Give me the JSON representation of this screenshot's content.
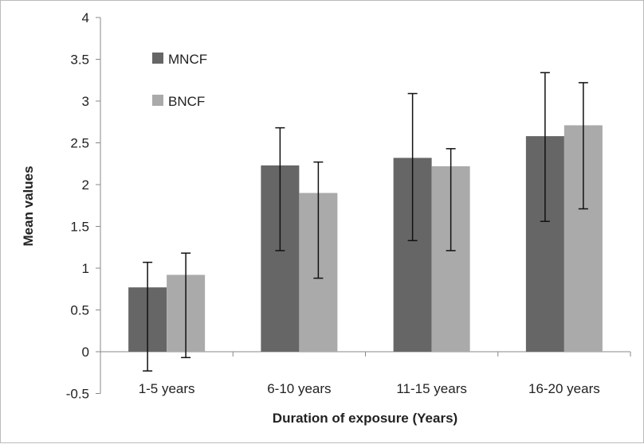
{
  "chart_data": {
    "type": "bar",
    "title": "",
    "xlabel": "Duration of exposure (Years)",
    "ylabel": "Mean values",
    "ylim": [
      -0.5,
      4
    ],
    "yticks": [
      "-0.5",
      "0",
      "0.5",
      "1",
      "1.5",
      "2",
      "2.5",
      "3",
      "3.5",
      "4"
    ],
    "grid": false,
    "legend_position": "top-left",
    "categories": [
      "1-5 years",
      "6-10 years",
      "11-15 years",
      "16-20 years"
    ],
    "series": [
      {
        "name": "MNCF",
        "color": "#666666",
        "values": [
          0.77,
          2.23,
          2.32,
          2.58
        ],
        "error_high": [
          1.07,
          2.68,
          3.09,
          3.34
        ],
        "error_low": [
          -0.23,
          1.21,
          1.33,
          1.56
        ]
      },
      {
        "name": "BNCF",
        "color": "#aaaaaa",
        "values": [
          0.92,
          1.9,
          2.22,
          2.71
        ],
        "error_high": [
          1.18,
          2.27,
          2.43,
          3.22
        ],
        "error_low": [
          -0.07,
          0.88,
          1.21,
          1.71
        ]
      }
    ]
  }
}
